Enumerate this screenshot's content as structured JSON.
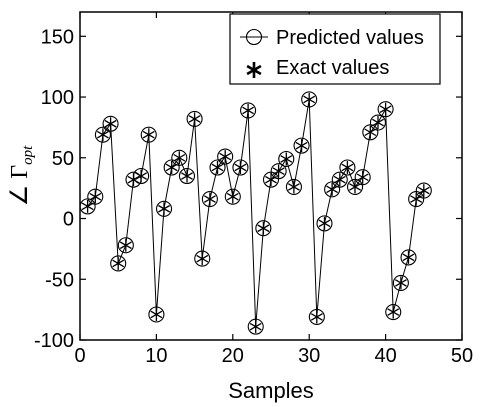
{
  "chart_data": {
    "type": "line",
    "xlabel": "Samples",
    "ylabel": {
      "symbol": "∠ Γ",
      "subscript": "opt"
    },
    "xlim": [
      0,
      50
    ],
    "ylim": [
      -100,
      170
    ],
    "xticks": [
      0,
      10,
      20,
      30,
      40,
      50
    ],
    "yticks": [
      -100,
      -50,
      0,
      50,
      100,
      150
    ],
    "grid": false,
    "legend_position": "top-right",
    "series": [
      {
        "name": "Predicted values",
        "marker": "open-circle",
        "x": [
          1,
          2,
          3,
          4,
          5,
          6,
          7,
          8,
          9,
          10,
          11,
          12,
          13,
          14,
          15,
          16,
          17,
          18,
          19,
          20,
          21,
          22,
          23,
          24,
          25,
          26,
          27,
          28,
          29,
          30,
          31,
          32,
          33,
          34,
          35,
          36,
          37,
          38,
          39,
          40,
          41,
          42,
          43,
          44,
          45
        ],
        "y": [
          10,
          18,
          69,
          78,
          -37,
          -22,
          32,
          35,
          69,
          -79,
          8,
          42,
          50,
          35,
          82,
          -33,
          16,
          42,
          51,
          18,
          42,
          89,
          -89,
          -8,
          32,
          39,
          49,
          26,
          60,
          98,
          -81,
          -4,
          24,
          32,
          42,
          26,
          34,
          71,
          79,
          90,
          -77,
          -53,
          -32,
          16,
          23
        ]
      },
      {
        "name": "Exact values",
        "marker": "asterisk",
        "x": [
          1,
          2,
          3,
          4,
          5,
          6,
          7,
          8,
          9,
          10,
          11,
          12,
          13,
          14,
          15,
          16,
          17,
          18,
          19,
          20,
          21,
          22,
          23,
          24,
          25,
          26,
          27,
          28,
          29,
          30,
          31,
          32,
          33,
          34,
          35,
          36,
          37,
          38,
          39,
          40,
          41,
          42,
          43,
          44,
          45
        ],
        "y": [
          10,
          18,
          69,
          78,
          -37,
          -22,
          32,
          35,
          69,
          -79,
          8,
          42,
          50,
          35,
          82,
          -33,
          16,
          42,
          51,
          18,
          42,
          89,
          -89,
          -8,
          32,
          39,
          49,
          26,
          60,
          98,
          -81,
          -4,
          24,
          32,
          42,
          26,
          34,
          71,
          79,
          90,
          -77,
          -53,
          -32,
          16,
          23
        ]
      }
    ]
  }
}
